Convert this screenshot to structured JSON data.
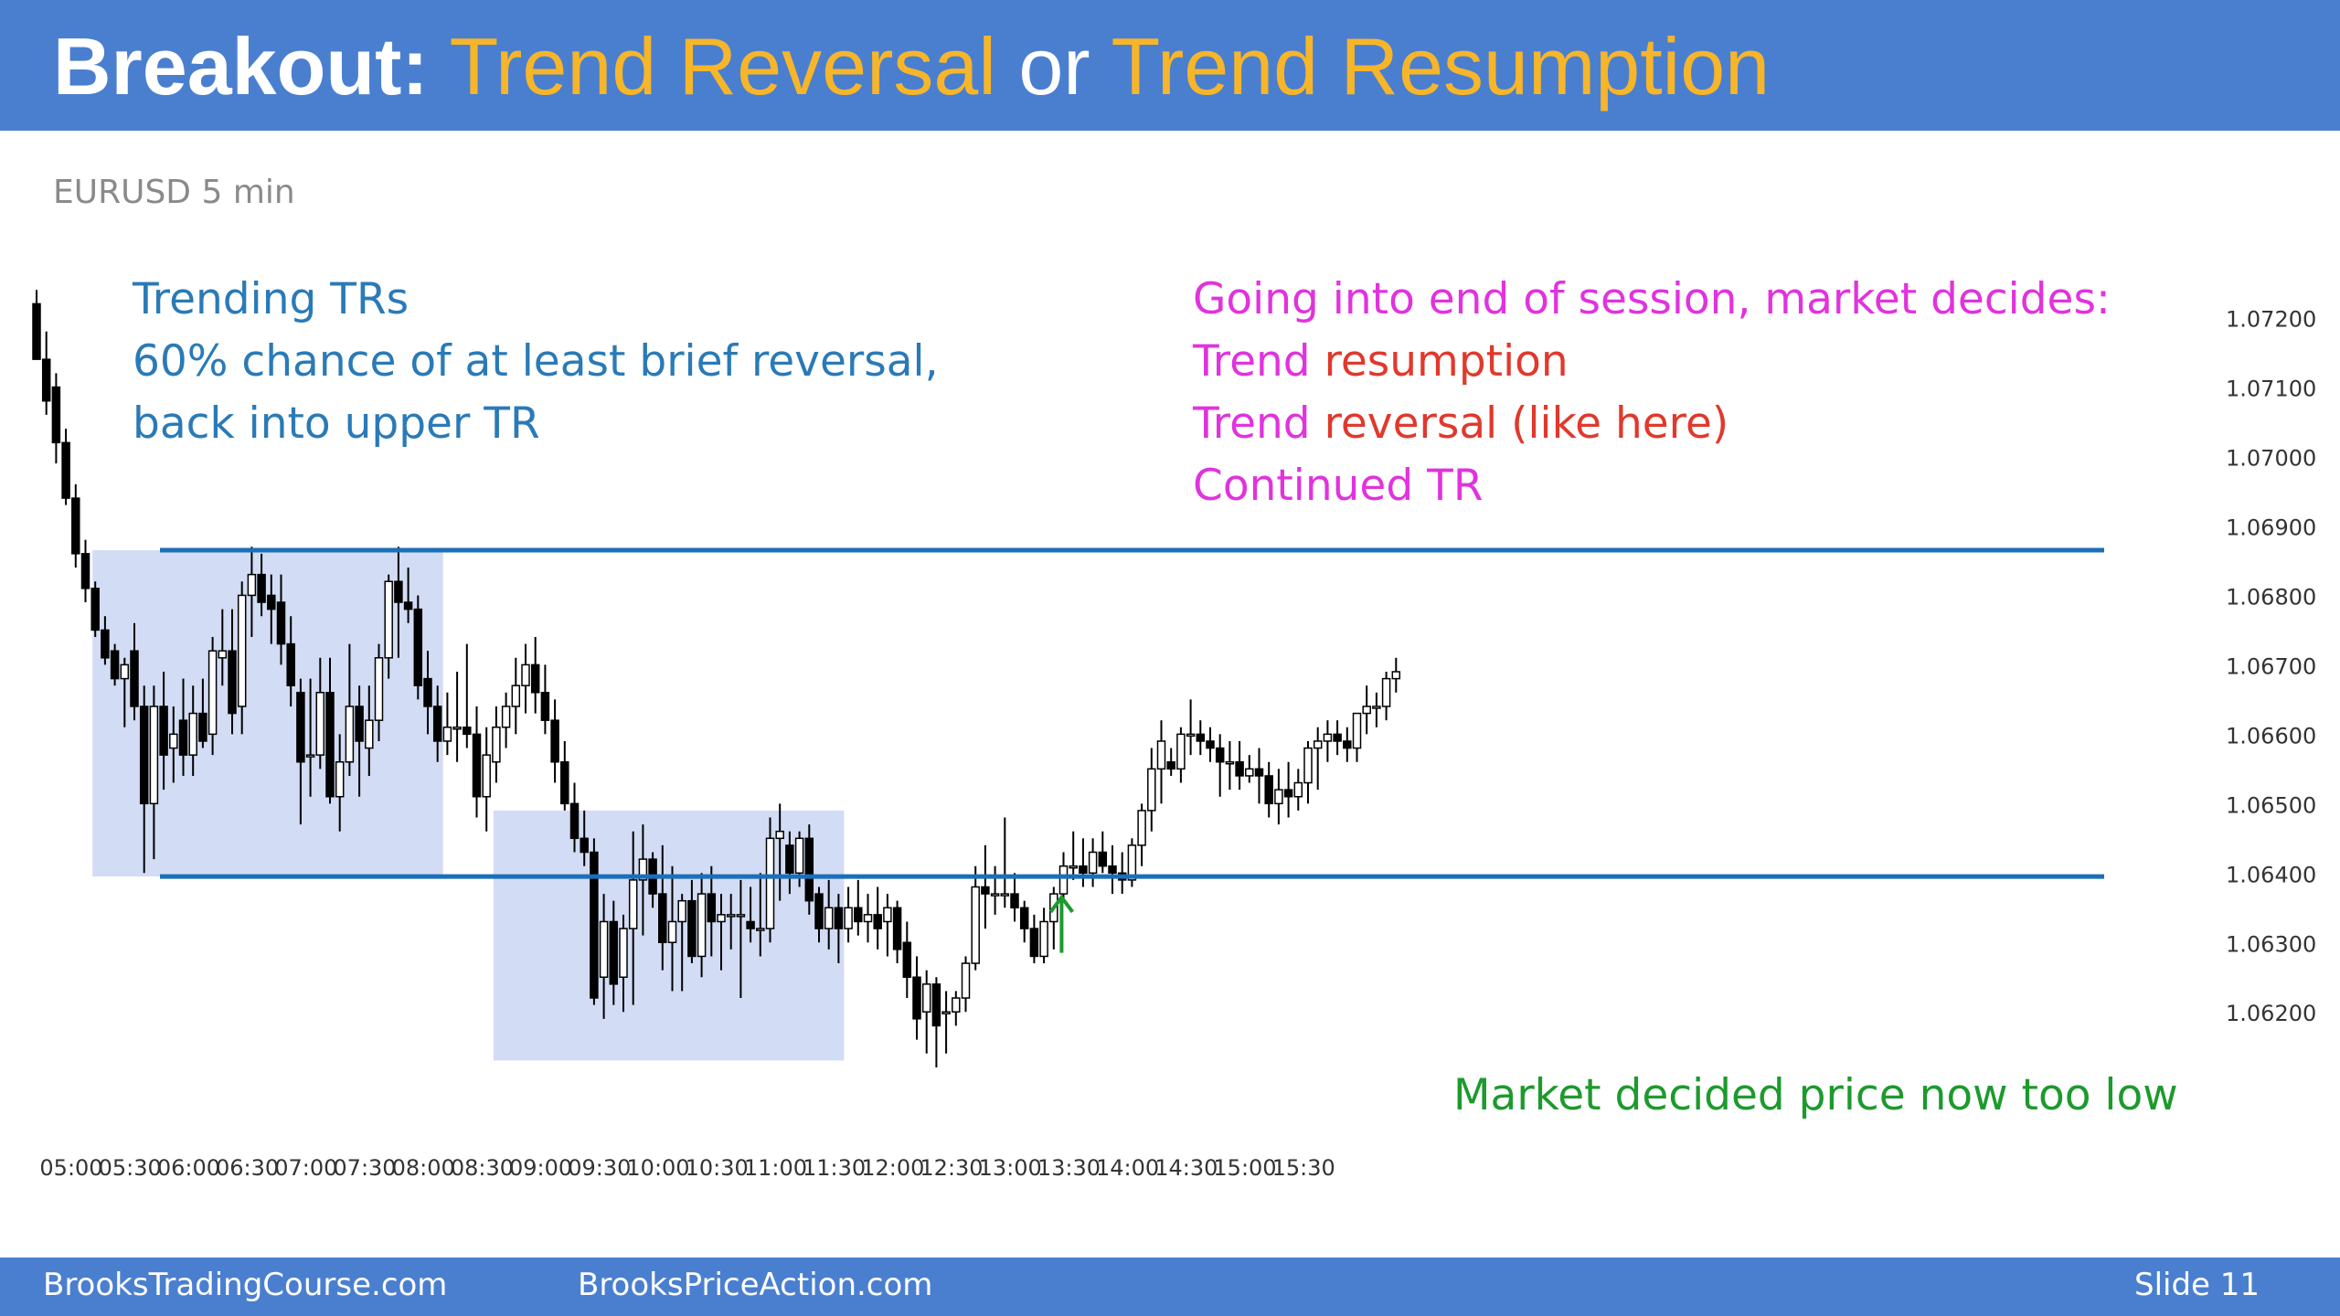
{
  "header": {
    "title_part1": "Breakout:",
    "title_part2": "Trend Reversal",
    "title_part3": "or",
    "title_part4": "Trend Resumption",
    "accent_color": "#f7b52a",
    "bar_color": "#4a7fd0"
  },
  "ticker": "EURUSD 5 min",
  "notes": {
    "left": [
      "Trending TRs",
      "60% chance of at least brief reversal,",
      "back into upper TR"
    ],
    "right_line1": "Going into end of session, market decides:",
    "right_line2_a": "Trend ",
    "right_line2_b": "resumption",
    "right_line3_a": "Trend ",
    "right_line3_b": "reversal (like here)",
    "right_line4": "Continued TR",
    "bottom": "Market decided price now too low"
  },
  "footer": {
    "left": "BrooksTradingCourse.com",
    "middle": "BrooksPriceAction.com",
    "slide": "Slide  11"
  },
  "chart_data": {
    "type": "candlestick",
    "symbol": "EURUSD",
    "timeframe": "5 min",
    "x_ticks": [
      "05:00",
      "05:30",
      "06:00",
      "06:30",
      "07:00",
      "07:30",
      "08:00",
      "08:30",
      "09:00",
      "09:30",
      "10:00",
      "10:30",
      "11:00",
      "11:30",
      "12:00",
      "12:30",
      "13:00",
      "13:30",
      "14:00",
      "14:30",
      "15:00",
      "15:30"
    ],
    "y_ticks": [
      "1.07200",
      "1.07100",
      "1.07000",
      "1.06900",
      "1.06800",
      "1.06700",
      "1.06600",
      "1.06500",
      "1.06400",
      "1.06300",
      "1.06200"
    ],
    "ylim": [
      1.0612,
      1.0726
    ],
    "horizontal_lines": [
      1.06865,
      1.06395
    ],
    "trading_ranges": [
      {
        "start": "05:30",
        "end": "08:25",
        "high": 1.06865,
        "low": 1.06395
      },
      {
        "start": "08:55",
        "end": "11:50",
        "high": 1.0649,
        "low": 1.0613
      }
    ],
    "annotation_arrow": {
      "time": "13:30",
      "from": 1.06285,
      "to": 1.06365,
      "color": "#1d9a2d"
    },
    "candles": [
      [
        1.0722,
        1.0724,
        1.0714,
        1.0714
      ],
      [
        1.0714,
        1.0718,
        1.0706,
        1.0708
      ],
      [
        1.071,
        1.0712,
        1.0699,
        1.0702
      ],
      [
        1.0702,
        1.0704,
        1.0693,
        1.0694
      ],
      [
        1.0694,
        1.0696,
        1.0684,
        1.0686
      ],
      [
        1.0686,
        1.0688,
        1.0679,
        1.0681
      ],
      [
        1.0681,
        1.0682,
        1.0674,
        1.0675
      ],
      [
        1.0675,
        1.0677,
        1.067,
        1.0671
      ],
      [
        1.0672,
        1.0673,
        1.0667,
        1.0668
      ],
      [
        1.0668,
        1.0671,
        1.0661,
        1.067
      ],
      [
        1.0672,
        1.0676,
        1.0662,
        1.0664
      ],
      [
        1.0664,
        1.0667,
        1.064,
        1.065
      ],
      [
        1.065,
        1.0667,
        1.0642,
        1.0664
      ],
      [
        1.0664,
        1.0669,
        1.0652,
        1.0657
      ],
      [
        1.0658,
        1.0664,
        1.0653,
        1.066
      ],
      [
        1.0662,
        1.0668,
        1.0654,
        1.0657
      ],
      [
        1.0657,
        1.0667,
        1.0654,
        1.0663
      ],
      [
        1.0663,
        1.0668,
        1.0658,
        1.0659
      ],
      [
        1.066,
        1.0674,
        1.0657,
        1.0672
      ],
      [
        1.0671,
        1.0678,
        1.0667,
        1.0672
      ],
      [
        1.0672,
        1.0678,
        1.066,
        1.0663
      ],
      [
        1.0664,
        1.0682,
        1.066,
        1.068
      ],
      [
        1.068,
        1.0687,
        1.0674,
        1.0683
      ],
      [
        1.0683,
        1.0686,
        1.0677,
        1.0679
      ],
      [
        1.068,
        1.0683,
        1.0673,
        1.0678
      ],
      [
        1.0679,
        1.0683,
        1.067,
        1.0673
      ],
      [
        1.0673,
        1.0677,
        1.0664,
        1.0667
      ],
      [
        1.0666,
        1.0668,
        1.0647,
        1.0656
      ],
      [
        1.0657,
        1.0668,
        1.0651,
        1.0657
      ],
      [
        1.0657,
        1.0671,
        1.0655,
        1.0666
      ],
      [
        1.0666,
        1.0671,
        1.065,
        1.0651
      ],
      [
        1.0651,
        1.066,
        1.0646,
        1.0656
      ],
      [
        1.0656,
        1.0673,
        1.0654,
        1.0664
      ],
      [
        1.0664,
        1.0667,
        1.0651,
        1.0659
      ],
      [
        1.0658,
        1.0667,
        1.0654,
        1.0662
      ],
      [
        1.0662,
        1.0673,
        1.0659,
        1.0671
      ],
      [
        1.0671,
        1.0683,
        1.0668,
        1.0682
      ],
      [
        1.0682,
        1.0687,
        1.0671,
        1.0679
      ],
      [
        1.0679,
        1.0684,
        1.0676,
        1.0678
      ],
      [
        1.0678,
        1.068,
        1.0665,
        1.0667
      ],
      [
        1.0668,
        1.0672,
        1.066,
        1.0664
      ],
      [
        1.0664,
        1.0667,
        1.0656,
        1.0659
      ],
      [
        1.0659,
        1.0666,
        1.0657,
        1.0661
      ],
      [
        1.0661,
        1.0669,
        1.0656,
        1.0661
      ],
      [
        1.0661,
        1.0673,
        1.0658,
        1.066
      ],
      [
        1.066,
        1.0664,
        1.0648,
        1.0651
      ],
      [
        1.0651,
        1.0661,
        1.0646,
        1.0657
      ],
      [
        1.0656,
        1.0664,
        1.0653,
        1.0661
      ],
      [
        1.0661,
        1.0666,
        1.0658,
        1.0664
      ],
      [
        1.0664,
        1.0671,
        1.066,
        1.0667
      ],
      [
        1.0667,
        1.0673,
        1.0663,
        1.067
      ],
      [
        1.067,
        1.0674,
        1.0663,
        1.0666
      ],
      [
        1.0666,
        1.067,
        1.066,
        1.0662
      ],
      [
        1.0662,
        1.0665,
        1.0653,
        1.0656
      ],
      [
        1.0656,
        1.0659,
        1.0649,
        1.065
      ],
      [
        1.065,
        1.0653,
        1.0643,
        1.0645
      ],
      [
        1.0645,
        1.0649,
        1.0641,
        1.0643
      ],
      [
        1.0643,
        1.0645,
        1.0621,
        1.0622
      ],
      [
        1.0625,
        1.0637,
        1.0619,
        1.0633
      ],
      [
        1.0633,
        1.0636,
        1.0621,
        1.0624
      ],
      [
        1.0625,
        1.0634,
        1.062,
        1.0632
      ],
      [
        1.0632,
        1.0646,
        1.0621,
        1.0639
      ],
      [
        1.0639,
        1.0647,
        1.0631,
        1.0642
      ],
      [
        1.0642,
        1.0643,
        1.0635,
        1.0637
      ],
      [
        1.0637,
        1.0644,
        1.0626,
        1.063
      ],
      [
        1.063,
        1.0641,
        1.0623,
        1.0633
      ],
      [
        1.0633,
        1.0637,
        1.0623,
        1.0636
      ],
      [
        1.0636,
        1.0639,
        1.0627,
        1.0628
      ],
      [
        1.0628,
        1.064,
        1.0625,
        1.0637
      ],
      [
        1.0637,
        1.0641,
        1.0628,
        1.0633
      ],
      [
        1.0633,
        1.0637,
        1.0626,
        1.0634
      ],
      [
        1.0634,
        1.0637,
        1.0629,
        1.0634
      ],
      [
        1.0634,
        1.0639,
        1.0622,
        1.0634
      ],
      [
        1.0633,
        1.0638,
        1.063,
        1.0632
      ],
      [
        1.0632,
        1.064,
        1.0628,
        1.0632
      ],
      [
        1.0632,
        1.0648,
        1.063,
        1.0645
      ],
      [
        1.0645,
        1.065,
        1.0636,
        1.0646
      ],
      [
        1.0644,
        1.0646,
        1.0637,
        1.064
      ],
      [
        1.064,
        1.0646,
        1.0638,
        1.0645
      ],
      [
        1.0645,
        1.0647,
        1.0634,
        1.0636
      ],
      [
        1.0637,
        1.0638,
        1.063,
        1.0632
      ],
      [
        1.0632,
        1.0639,
        1.0629,
        1.0635
      ],
      [
        1.0635,
        1.0637,
        1.0627,
        1.0632
      ],
      [
        1.0632,
        1.0638,
        1.063,
        1.0635
      ],
      [
        1.0635,
        1.0639,
        1.0631,
        1.0633
      ],
      [
        1.0633,
        1.0637,
        1.063,
        1.0634
      ],
      [
        1.0634,
        1.0638,
        1.0629,
        1.0632
      ],
      [
        1.0633,
        1.0637,
        1.0628,
        1.0635
      ],
      [
        1.0635,
        1.0636,
        1.0627,
        1.0629
      ],
      [
        1.063,
        1.0633,
        1.0622,
        1.0625
      ],
      [
        1.0625,
        1.0628,
        1.0616,
        1.0619
      ],
      [
        1.062,
        1.0626,
        1.0614,
        1.0624
      ],
      [
        1.0624,
        1.0625,
        1.0612,
        1.0618
      ],
      [
        1.062,
        1.0623,
        1.0614,
        1.062
      ],
      [
        1.062,
        1.0623,
        1.0618,
        1.0622
      ],
      [
        1.0622,
        1.0628,
        1.062,
        1.0627
      ],
      [
        1.0627,
        1.0641,
        1.0626,
        1.0638
      ],
      [
        1.0638,
        1.0644,
        1.0632,
        1.0637
      ],
      [
        1.0637,
        1.0641,
        1.0634,
        1.0637
      ],
      [
        1.0637,
        1.0648,
        1.0635,
        1.0637
      ],
      [
        1.0637,
        1.064,
        1.0633,
        1.0635
      ],
      [
        1.0635,
        1.0636,
        1.063,
        1.0632
      ],
      [
        1.0632,
        1.0634,
        1.0627,
        1.0628
      ],
      [
        1.0628,
        1.0635,
        1.0627,
        1.0633
      ],
      [
        1.0633,
        1.0638,
        1.0629,
        1.0637
      ],
      [
        1.0637,
        1.0643,
        1.0636,
        1.0641
      ],
      [
        1.0641,
        1.0646,
        1.0639,
        1.0641
      ],
      [
        1.0641,
        1.0645,
        1.0638,
        1.064
      ],
      [
        1.064,
        1.0645,
        1.0638,
        1.0643
      ],
      [
        1.0643,
        1.0646,
        1.064,
        1.0641
      ],
      [
        1.0641,
        1.0644,
        1.0637,
        1.064
      ],
      [
        1.064,
        1.0643,
        1.0637,
        1.0639
      ],
      [
        1.0639,
        1.0645,
        1.0638,
        1.0644
      ],
      [
        1.0644,
        1.065,
        1.0641,
        1.0649
      ],
      [
        1.0649,
        1.0658,
        1.0646,
        1.0655
      ],
      [
        1.0655,
        1.0662,
        1.065,
        1.0659
      ],
      [
        1.0656,
        1.0658,
        1.0654,
        1.0655
      ],
      [
        1.0655,
        1.0661,
        1.0653,
        1.066
      ],
      [
        1.066,
        1.0665,
        1.0657,
        1.066
      ],
      [
        1.066,
        1.0662,
        1.0657,
        1.0659
      ],
      [
        1.0659,
        1.0661,
        1.0656,
        1.0658
      ],
      [
        1.0658,
        1.066,
        1.0651,
        1.0656
      ],
      [
        1.0656,
        1.0659,
        1.0652,
        1.0656
      ],
      [
        1.0656,
        1.0659,
        1.0652,
        1.0654
      ],
      [
        1.0654,
        1.0657,
        1.0653,
        1.0655
      ],
      [
        1.0655,
        1.0658,
        1.065,
        1.0654
      ],
      [
        1.0654,
        1.0656,
        1.0648,
        1.065
      ],
      [
        1.065,
        1.0655,
        1.0647,
        1.0652
      ],
      [
        1.0652,
        1.0656,
        1.0648,
        1.0651
      ],
      [
        1.0651,
        1.0655,
        1.0649,
        1.0653
      ],
      [
        1.0653,
        1.0659,
        1.065,
        1.0658
      ],
      [
        1.0658,
        1.0661,
        1.0652,
        1.0659
      ],
      [
        1.0659,
        1.0662,
        1.0656,
        1.066
      ],
      [
        1.066,
        1.0662,
        1.0657,
        1.0659
      ],
      [
        1.0659,
        1.0661,
        1.0656,
        1.0658
      ],
      [
        1.0658,
        1.0663,
        1.0656,
        1.0663
      ],
      [
        1.0663,
        1.0667,
        1.066,
        1.0664
      ],
      [
        1.0664,
        1.0666,
        1.0661,
        1.0664
      ],
      [
        1.0664,
        1.0669,
        1.0662,
        1.0668
      ],
      [
        1.0668,
        1.0671,
        1.0666,
        1.0669
      ]
    ]
  }
}
